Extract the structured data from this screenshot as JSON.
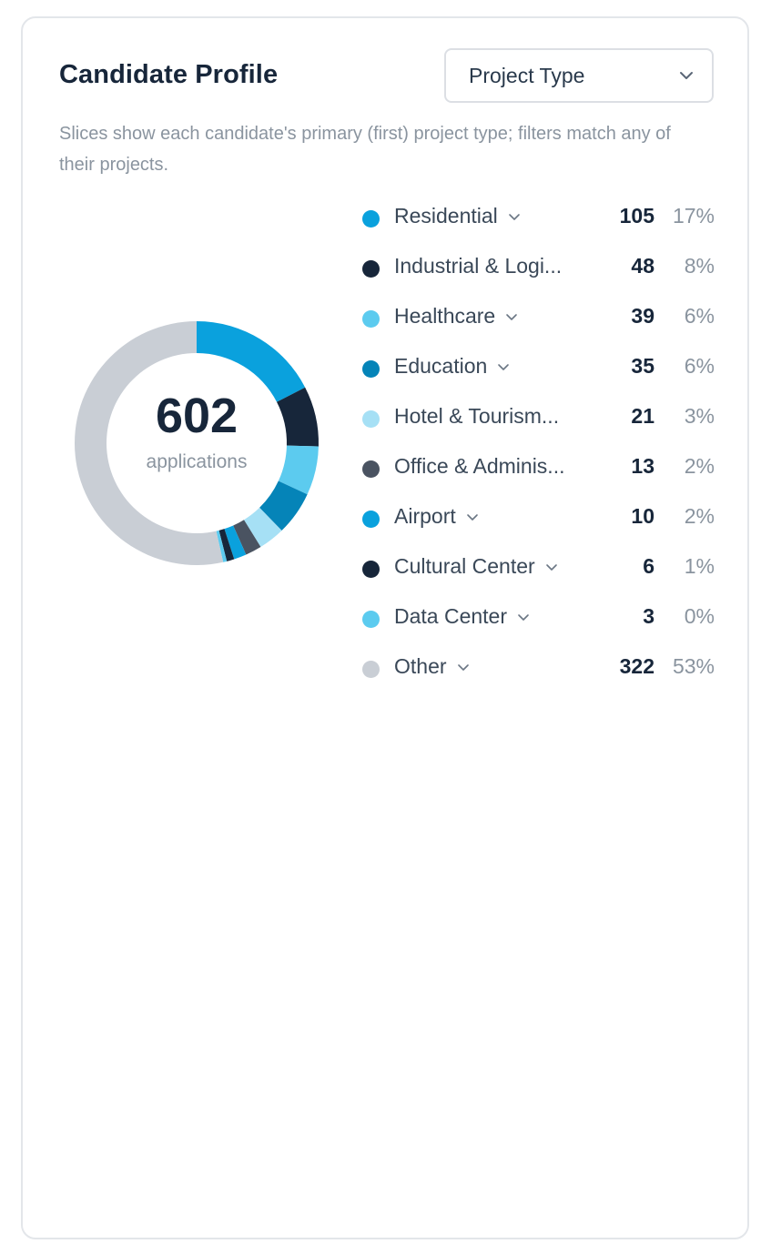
{
  "card": {
    "title": "Candidate Profile",
    "dropdown": {
      "selected": "Project Type",
      "icon": "chevron-down-icon"
    },
    "subtitle": "Slices show each candidate's primary (first) project type; filters match any of their projects."
  },
  "donut": {
    "total": "602",
    "caption": "applications"
  },
  "chart_data": {
    "type": "pie",
    "total": 602,
    "slices": [
      {
        "name": "Residential",
        "value": 105,
        "percent": "17%",
        "color": "#0aa1dd",
        "expandable": true
      },
      {
        "name": "Industrial & Logistics",
        "label": "Industrial & Logi...",
        "value": 48,
        "percent": "8%",
        "color": "#17263a",
        "expandable": false
      },
      {
        "name": "Healthcare",
        "value": 39,
        "percent": "6%",
        "color": "#5ccbef",
        "expandable": true
      },
      {
        "name": "Education",
        "value": 35,
        "percent": "6%",
        "color": "#0584b8",
        "expandable": true
      },
      {
        "name": "Hotel & Tourism",
        "label": "Hotel & Tourism...",
        "value": 21,
        "percent": "3%",
        "color": "#a6e0f5",
        "expandable": false
      },
      {
        "name": "Office & Administration",
        "label": "Office & Adminis...",
        "value": 13,
        "percent": "2%",
        "color": "#4a5361",
        "expandable": false
      },
      {
        "name": "Airport",
        "value": 10,
        "percent": "2%",
        "color": "#0aa1dd",
        "expandable": true
      },
      {
        "name": "Cultural Center",
        "value": 6,
        "percent": "1%",
        "color": "#17263a",
        "expandable": true
      },
      {
        "name": "Data Center",
        "value": 3,
        "percent": "0%",
        "color": "#5ccbef",
        "expandable": true
      },
      {
        "name": "Other",
        "value": 322,
        "percent": "53%",
        "color": "#c9ced5",
        "expandable": true
      }
    ]
  }
}
